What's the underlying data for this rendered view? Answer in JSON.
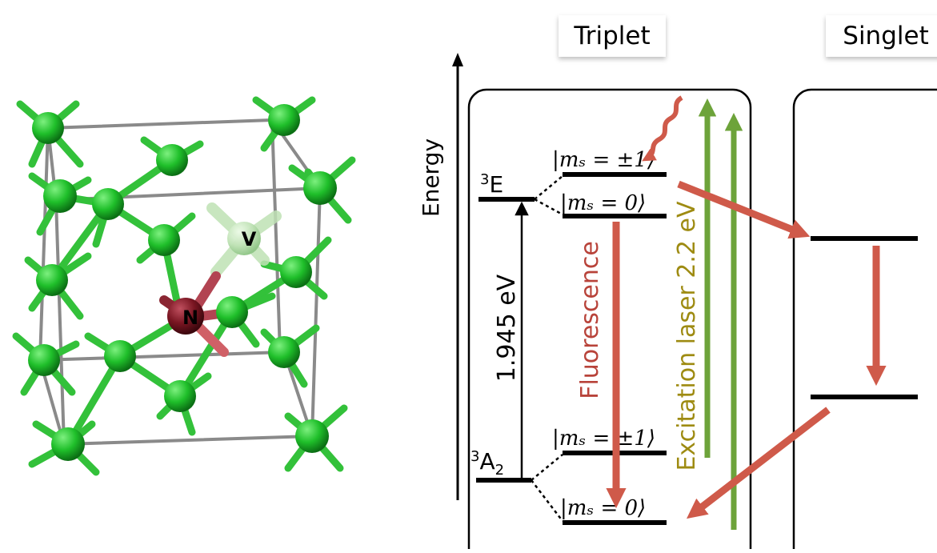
{
  "crystal": {
    "atom_labels": {
      "vacancy": "V",
      "nitrogen": "N"
    },
    "colors": {
      "carbon": "#1fbf2a",
      "carbon_bond": "#33c13a",
      "nitrogen": "#7a1622",
      "nitrogen_bond": "#d06067",
      "cell_edge": "#8a8a8a",
      "vacancy": "#c8e6c0"
    }
  },
  "diagram": {
    "energy_axis_label": "Energy",
    "panels": {
      "triplet": {
        "title": "Triplet"
      },
      "singlet": {
        "title": "Singlet"
      }
    },
    "levels": {
      "excited_label_sup": "3",
      "excited_label_main": "E",
      "ground_label_sup": "3",
      "ground_label_main": "A",
      "ground_label_sub": "2",
      "ms_pm1_upper": "|mₛ = ±1⟩",
      "ms_0_upper": "|mₛ = 0⟩",
      "ms_pm1_lower": "|mₛ = ±1⟩",
      "ms_0_lower": "|mₛ = 0⟩"
    },
    "gap_label": "1.945 eV",
    "fluorescence_label": "Fluorescence",
    "excitation_label": "Excitation laser 2.2 eV",
    "colors": {
      "fluorescence": "#cf5a4a",
      "excitation": "#6da33a",
      "excitation_text": "#9e8b12",
      "level": "#000000"
    }
  }
}
